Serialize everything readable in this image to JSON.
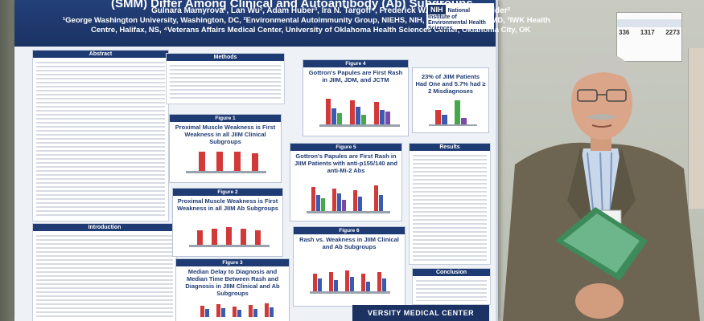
{
  "poster": {
    "title": "(SMM) Differ Among Clinical and Autoantibody (Ab) Subgroups",
    "authors": "Gulnara Mamyrova¹, Lan Wu², Adam Huber³, Ira N. Targoff⁴, Frederick W. Miller², Lisa G. Rider²",
    "affiliation_1": "¹George Washington University, Washington, DC, ²Environmental Autoimmunity Group, NIEHS, NIH, DHHS, Bethesda, MD, ³IWK Health",
    "affiliation_2": "Centre, Halifax, NS, ⁴Veterans Affairs Medical Center, University of Oklahoma Health Sciences Center, Oklahoma City, OK",
    "nih_mark": "NIH",
    "nih_label": "National Institute of Environmental Health Sciences",
    "footer": "VERSITY MEDICAL CENTER"
  },
  "sections": {
    "abstract": "Abstract",
    "methods": "Methods",
    "introduction": "Introduction",
    "results": "Results",
    "conclusion": "Conclusion"
  },
  "figures": {
    "f1_head": "Figure 1",
    "f1_title": "Proximal Muscle Weakness is First Weakness in all JIIM Clinical Subgroups",
    "f2_head": "Figure 2",
    "f2_title": "Proximal Muscle Weakness is First Weakness in all JIIM Ab Subgroups",
    "f3_head": "Figure 3",
    "f3_title": "Median Delay to Diagnosis and Median Time Between Rash and Diagnosis in JIIM Clinical and Ab Subgroups",
    "f4_head": "Figure 4",
    "f4_title": "Gottron's Papules are First Rash in JIIM, JDM, and JCTM",
    "f5_head": "Figure 5",
    "f5_title": "Gottron's Papules are First Rash in JIIM Patients with anti-p155/140 and anti-Mi-2 Abs",
    "f6_head": "Figure 6",
    "f6_title": "Rash vs. Weakness in JIIM Clinical and Ab Subgroups",
    "f7_title": "23% of JIIM Patients Had One and 5.7% had ≥ 2 Misdiagnoses"
  },
  "sign": {
    "col1": "336",
    "col2": "1317",
    "col3": "2273"
  },
  "colors": {
    "poster_header": "#1b3263",
    "bar_red": "#d23a3a",
    "bar_blue": "#3a5bb0",
    "bar_green": "#46a84a",
    "bar_purple": "#7b4aa8"
  }
}
